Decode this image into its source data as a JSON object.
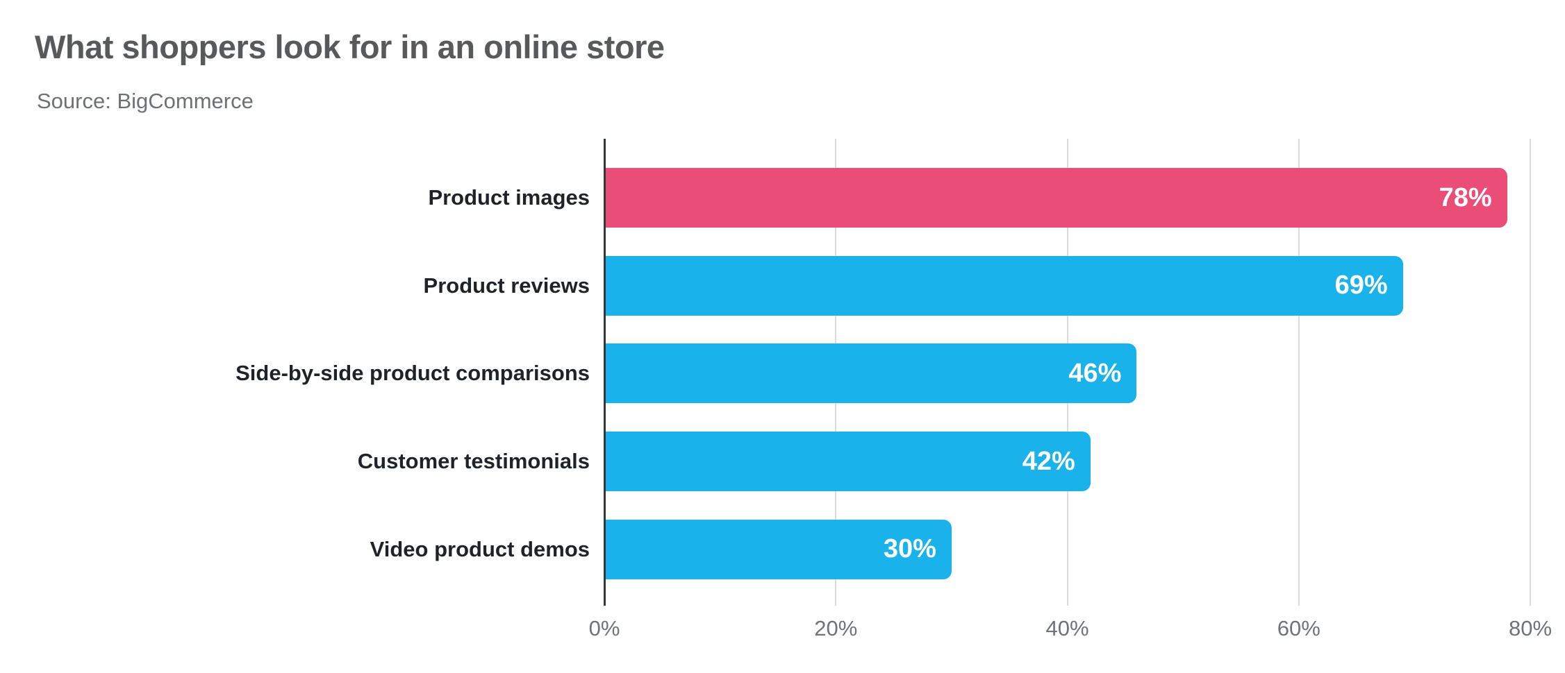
{
  "header": {
    "title": "What shoppers look for in an online store",
    "source": "Source: BigCommerce"
  },
  "chart_data": {
    "type": "bar",
    "orientation": "horizontal",
    "title": "What shoppers look for in an online store",
    "subtitle": "Source: BigCommerce",
    "categories": [
      "Product images",
      "Product reviews",
      "Side-by-side product comparisons",
      "Customer testimonials",
      "Video product demos"
    ],
    "values": [
      78,
      69,
      46,
      42,
      30
    ],
    "value_labels": [
      "78%",
      "69%",
      "46%",
      "42%",
      "30%"
    ],
    "bar_colors": [
      "#ea4e78",
      "#1ab2ea",
      "#1ab2ea",
      "#1ab2ea",
      "#1ab2ea"
    ],
    "xlabel": "",
    "ylabel": "",
    "xlim": [
      0,
      80
    ],
    "x_ticks": [
      0,
      20,
      40,
      60,
      80
    ],
    "x_tick_labels": [
      "0%",
      "20%",
      "40%",
      "60%",
      "80%"
    ],
    "grid": "vertical-gridlines-only",
    "legend_position": "none",
    "styles": {
      "background": "#ffffff",
      "highlight_bar_color": "#ea4e78",
      "default_bar_color": "#1ab2ea",
      "title_color": "#58595b",
      "subtitle_color": "#6e7174",
      "category_label_color": "#1f2328",
      "tick_label_color": "#6f7377",
      "value_label_color": "#ffffff",
      "axis_line_color": "#32373c",
      "gridline_color": "#dbdcde"
    }
  }
}
